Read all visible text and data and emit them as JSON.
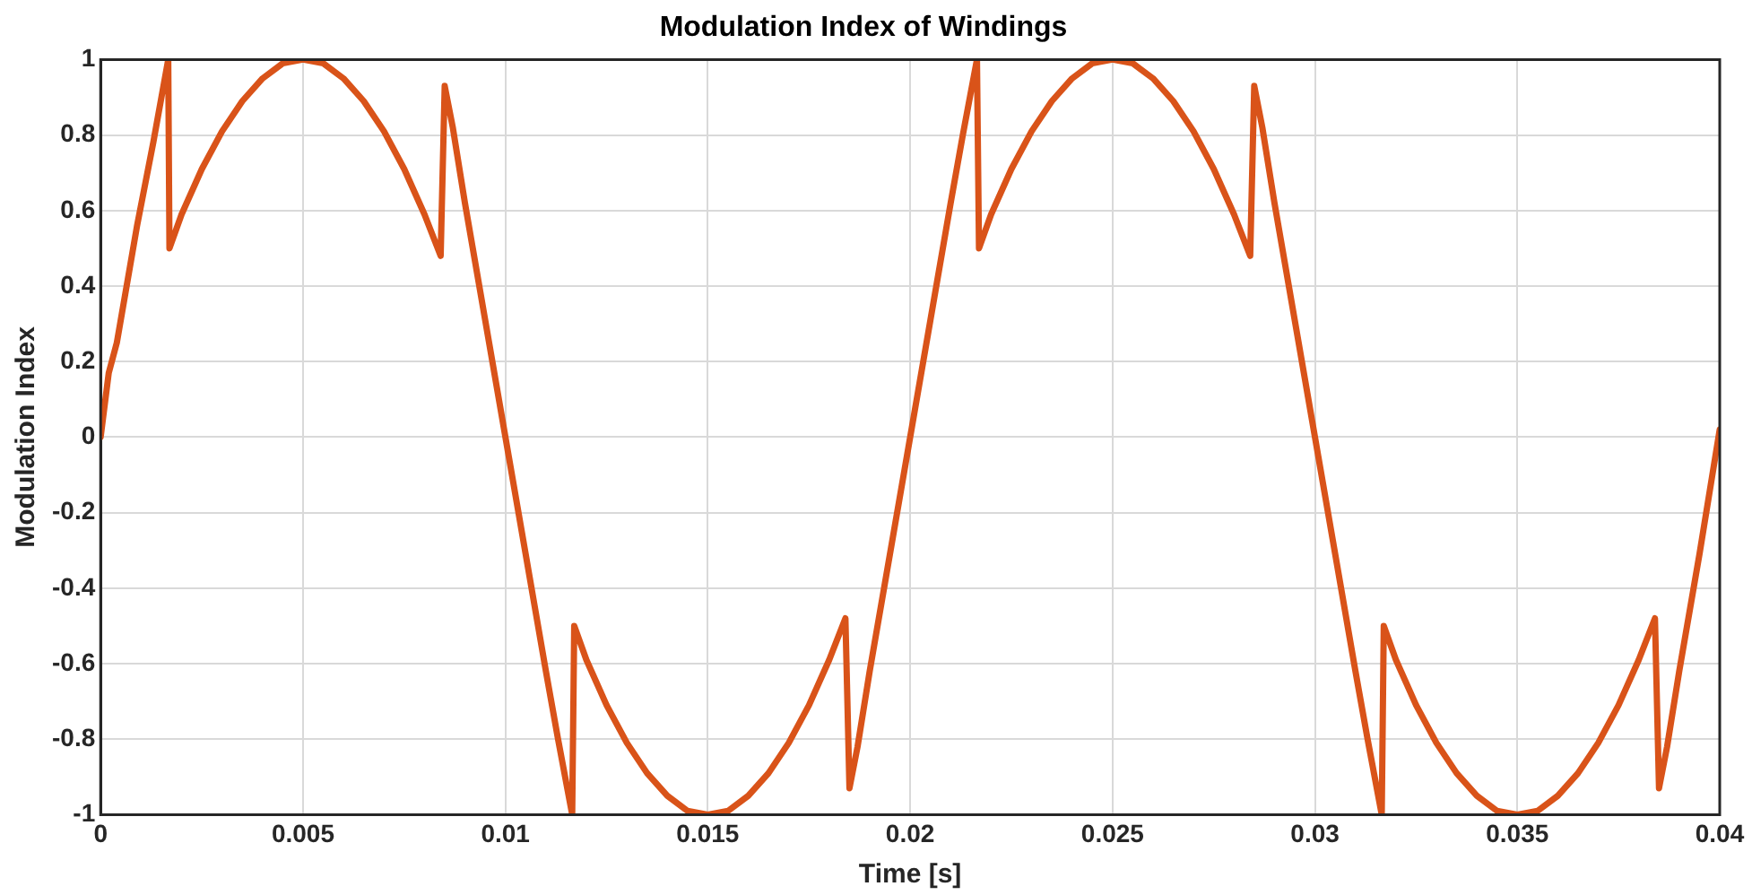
{
  "chart_data": {
    "type": "line",
    "title": "Modulation Index of Windings",
    "xlabel": "Time [s]",
    "ylabel": "Modulation Index",
    "x": [
      0,
      0.0002,
      0.0004,
      0.0009,
      0.0013,
      0.00167,
      0.0017,
      0.002,
      0.0025,
      0.003,
      0.0035,
      0.004,
      0.0045,
      0.005,
      0.0055,
      0.006,
      0.0065,
      0.007,
      0.0075,
      0.008,
      0.0084,
      0.0085,
      0.0087,
      0.009,
      0.0095,
      0.01,
      0.0105,
      0.011,
      0.0113,
      0.01165,
      0.0117,
      0.012,
      0.0125,
      0.013,
      0.0135,
      0.014,
      0.0145,
      0.015,
      0.0155,
      0.016,
      0.0165,
      0.017,
      0.0175,
      0.018,
      0.0184,
      0.0185,
      0.0187,
      0.019,
      0.0195,
      0.02,
      0.0205,
      0.021,
      0.0213,
      0.02165,
      0.0217,
      0.022,
      0.0225,
      0.023,
      0.0235,
      0.024,
      0.0245,
      0.025,
      0.0255,
      0.026,
      0.0265,
      0.027,
      0.0275,
      0.028,
      0.0284,
      0.0285,
      0.0287,
      0.029,
      0.0295,
      0.03,
      0.0305,
      0.031,
      0.0313,
      0.03165,
      0.0317,
      0.032,
      0.0325,
      0.033,
      0.0335,
      0.034,
      0.0345,
      0.035,
      0.0355,
      0.036,
      0.0365,
      0.037,
      0.0375,
      0.038,
      0.0384,
      0.0385,
      0.0387,
      0.039,
      0.0395,
      0.04
    ],
    "series": [
      {
        "color": "#d95319",
        "values": [
          0,
          0.17,
          0.25,
          0.56,
          0.78,
          1,
          0.5,
          0.59,
          0.71,
          0.81,
          0.89,
          0.95,
          0.99,
          1,
          0.99,
          0.95,
          0.89,
          0.81,
          0.71,
          0.59,
          0.48,
          0.93,
          0.82,
          0.62,
          0.31,
          0,
          -0.31,
          -0.62,
          -0.8,
          -1,
          -0.5,
          -0.59,
          -0.71,
          -0.81,
          -0.89,
          -0.95,
          -0.99,
          -1,
          -0.99,
          -0.95,
          -0.89,
          -0.81,
          -0.71,
          -0.59,
          -0.48,
          -0.93,
          -0.82,
          -0.62,
          -0.31,
          0,
          0.31,
          0.62,
          0.8,
          1,
          0.5,
          0.59,
          0.71,
          0.81,
          0.89,
          0.95,
          0.99,
          1,
          0.99,
          0.95,
          0.89,
          0.81,
          0.71,
          0.59,
          0.48,
          0.93,
          0.82,
          0.62,
          0.31,
          0,
          -0.31,
          -0.62,
          -0.8,
          -1,
          -0.5,
          -0.59,
          -0.71,
          -0.81,
          -0.89,
          -0.95,
          -0.99,
          -1,
          -0.99,
          -0.95,
          -0.89,
          -0.81,
          -0.71,
          -0.59,
          -0.48,
          -0.93,
          -0.82,
          -0.62,
          -0.31,
          0.02
        ]
      }
    ],
    "xlim": [
      0,
      0.04
    ],
    "xticks": [
      0,
      0.005,
      0.01,
      0.015,
      0.02,
      0.025,
      0.03,
      0.035,
      0.04
    ],
    "ylim": [
      -1,
      1
    ],
    "yticks": [
      -1,
      -0.8,
      -0.6,
      -0.4,
      -0.2,
      0,
      0.2,
      0.4,
      0.6,
      0.8,
      1
    ],
    "grid": true,
    "legend": false,
    "marker": "none",
    "line_style": "solid"
  }
}
